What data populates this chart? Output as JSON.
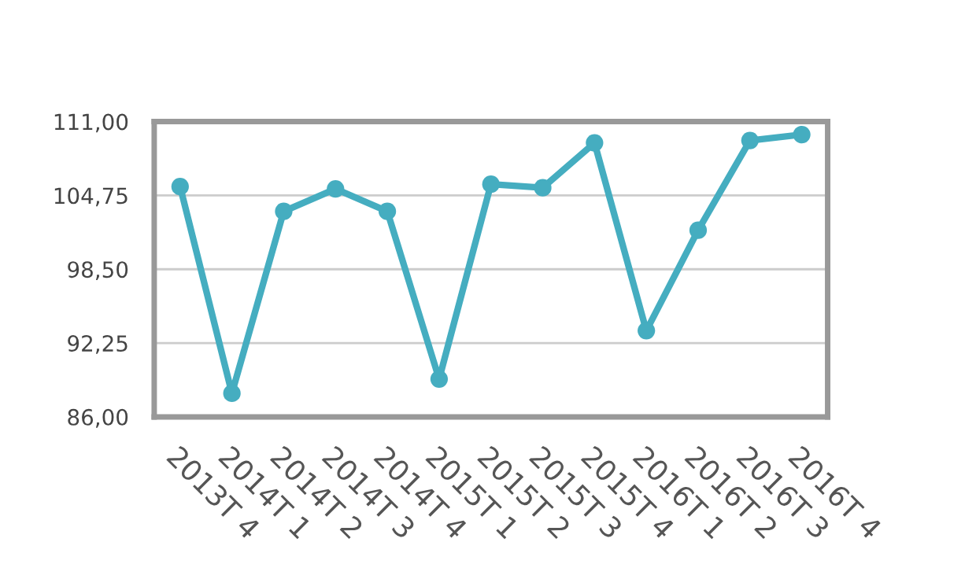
{
  "chart_data": {
    "type": "line",
    "categories": [
      "2013T 4",
      "2014T 1",
      "2014T 2",
      "2014T 3",
      "2014T 4",
      "2015T 1",
      "2015T 2",
      "2015T 3",
      "2015T 4",
      "2016T 1",
      "2016T 2",
      "2016T 3",
      "2016T 4"
    ],
    "series": [
      {
        "color": "#45adc0",
        "values": [
          105.5,
          88.0,
          103.4,
          105.3,
          103.4,
          89.2,
          105.7,
          105.4,
          109.2,
          93.3,
          101.8,
          109.4,
          109.9
        ]
      }
    ],
    "ylim": [
      86,
      111
    ],
    "yticks": [
      {
        "value": 86,
        "label": "86,00"
      },
      {
        "value": 92.25,
        "label": "92,25"
      },
      {
        "value": 98.5,
        "label": "98,50"
      },
      {
        "value": 104.75,
        "label": "104,75"
      },
      {
        "value": 111,
        "label": "111,00"
      }
    ],
    "grid": "y",
    "marker": "circle",
    "line_style": "solid",
    "legend": false
  }
}
